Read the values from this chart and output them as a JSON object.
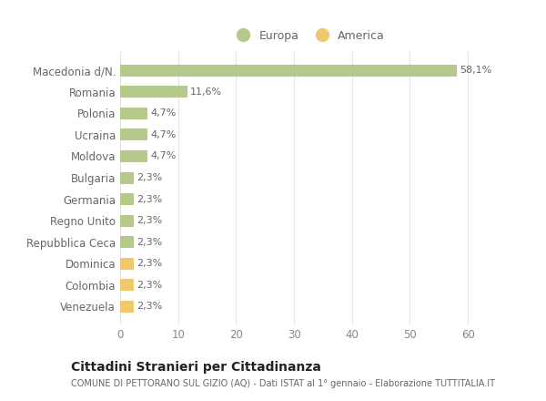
{
  "categories": [
    "Macedonia d/N.",
    "Romania",
    "Polonia",
    "Ucraina",
    "Moldova",
    "Bulgaria",
    "Germania",
    "Regno Unito",
    "Repubblica Ceca",
    "Dominica",
    "Colombia",
    "Venezuela"
  ],
  "values": [
    58.1,
    11.6,
    4.7,
    4.7,
    4.7,
    2.3,
    2.3,
    2.3,
    2.3,
    2.3,
    2.3,
    2.3
  ],
  "labels": [
    "58,1%",
    "11,6%",
    "4,7%",
    "4,7%",
    "4,7%",
    "2,3%",
    "2,3%",
    "2,3%",
    "2,3%",
    "2,3%",
    "2,3%",
    "2,3%"
  ],
  "colors": [
    "#b5c98a",
    "#b5c98a",
    "#b5c98a",
    "#b5c98a",
    "#b5c98a",
    "#b5c98a",
    "#b5c98a",
    "#b5c98a",
    "#b5c98a",
    "#f0c96e",
    "#f0c96e",
    "#f0c96e"
  ],
  "europa_color": "#b5c98a",
  "america_color": "#f0c96e",
  "title": "Cittadini Stranieri per Cittadinanza",
  "subtitle": "COMUNE DI PETTORANO SUL GIZIO (AQ) - Dati ISTAT al 1° gennaio - Elaborazione TUTTITALIA.IT",
  "xlim": [
    0,
    65
  ],
  "xticks": [
    0,
    10,
    20,
    30,
    40,
    50,
    60
  ],
  "background_color": "#ffffff",
  "grid_color": "#e5e5e5",
  "bar_height": 0.55,
  "legend_europa": "Europa",
  "legend_america": "America"
}
